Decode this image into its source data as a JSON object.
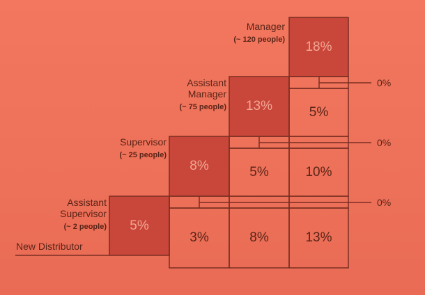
{
  "levels": {
    "manager": {
      "title": "Manager",
      "count": "(~ 120 people)"
    },
    "assistant_manager": {
      "title_line1": "Assistant",
      "title_line2": "Manager",
      "count": "(~ 75 people)"
    },
    "supervisor": {
      "title": "Supervisor",
      "count": "(~ 25 people)"
    },
    "assistant_supervisor": {
      "title_line1": "Assistant",
      "title_line2": "Supervisor",
      "count": "(~ 2 people)"
    },
    "new_distributor": {
      "title": "New Distributor"
    }
  },
  "percentages": {
    "manager_own": "18%",
    "assistant_manager_own": "13%",
    "supervisor_own": "8%",
    "assistant_supervisor_own": "5%",
    "manager_on_assistant_manager": "5%",
    "supervisor_from_assistant_manager": "5%",
    "supervisor_from_manager": "10%",
    "base_from_supervisor": "3%",
    "base_from_assistant_manager": "8%",
    "base_from_manager": "13%"
  },
  "zero_labels": {
    "row_manager": "0%",
    "row_assistant_manager": "0%",
    "row_supervisor": "0%"
  },
  "colors": {
    "background": "#ef735b",
    "dark_box": "#c9473a",
    "line": "#7a2e22",
    "text": "#5a2418"
  }
}
